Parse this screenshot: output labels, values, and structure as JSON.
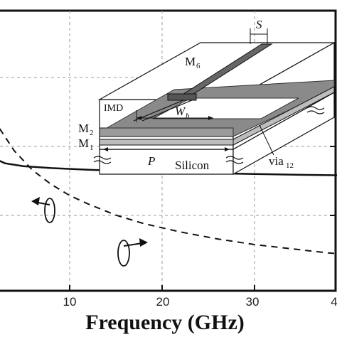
{
  "chart_data": {
    "type": "line",
    "xlabel": "Frequency (GHz)",
    "xlim": [
      0,
      40
    ],
    "x_ticks": [
      "10",
      "20",
      "30",
      "4"
    ],
    "series": [
      {
        "style": "solid",
        "axis": "left",
        "x": [
          0,
          1,
          2,
          3,
          5,
          8,
          12,
          16,
          20,
          25,
          30,
          35,
          40
        ],
        "y": [
          0.55,
          0.5,
          0.47,
          0.455,
          0.445,
          0.438,
          0.432,
          0.428,
          0.424,
          0.42,
          0.417,
          0.414,
          0.412
        ]
      },
      {
        "style": "dashed",
        "axis": "right",
        "x": [
          0,
          1,
          2,
          3,
          4,
          6,
          8,
          10,
          12,
          15,
          18,
          22,
          26,
          30,
          34,
          38,
          40
        ],
        "y": [
          0.72,
          0.66,
          0.6,
          0.55,
          0.5,
          0.43,
          0.38,
          0.34,
          0.31,
          0.27,
          0.24,
          0.21,
          0.185,
          0.165,
          0.15,
          0.135,
          0.13
        ]
      }
    ],
    "grid": true
  },
  "inset": {
    "labels": {
      "s": "S",
      "m6": "M",
      "m6_sub": "6",
      "imd": "IMD",
      "wh": "W",
      "wh_sub": "h",
      "m2": "M",
      "m2_sub": "2",
      "m1": "M",
      "m1_sub": "1",
      "p": "P",
      "silicon": "Silicon",
      "via": "via",
      "via_sub": "12"
    }
  },
  "colors": {
    "line": "#111111",
    "grid": "#9a9a9a",
    "metal_dark": "#555555",
    "metal_mid": "#888888",
    "metal_light": "#bdbdbd"
  }
}
